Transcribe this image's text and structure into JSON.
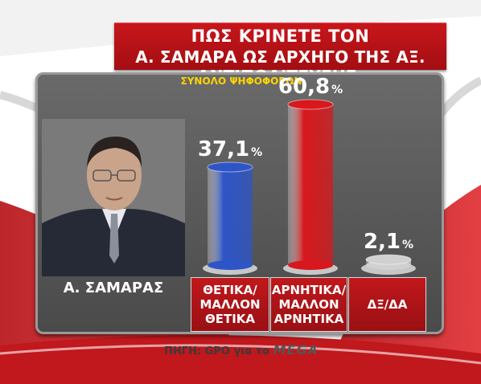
{
  "title": {
    "line1": "ΠΩΣ ΚΡΙΝΕΤΕ ΤΟΝ",
    "line2": "Α. ΣΑΜΑΡΑ ΩΣ ΑΡΧΗΓΟ ΤΗΣ ΑΞ. ΑΝΤΙΠΟΛΙΤΕΥΣΗΣ;"
  },
  "subtitle": "ΣΥΝΟΛΟ ΨΗΦΟΦΟΡΩΝ",
  "person_label": "Α. ΣΑΜΑΡΑΣ",
  "source": {
    "text": "ΠΗΓΗ: GPO για το",
    "brand": "MEGA"
  },
  "categories": [
    {
      "line1": "ΘΕΤΙΚΑ/",
      "line2": "ΜΑΛΛΟΝ",
      "line3": "ΘΕΤΙΚΑ"
    },
    {
      "line1": "ΑΡΝΗΤΙΚΑ/",
      "line2": "ΜΑΛΛΟΝ",
      "line3": "ΑΡΝΗΤΙΚΑ"
    },
    {
      "line1": "ΔΞ/ΔΑ",
      "line2": "",
      "line3": ""
    }
  ],
  "colors": {
    "brand_red": "#c0181c",
    "positive_bar": "#2e55c8",
    "negative_bar": "#d8181c",
    "neutral_bar": "#d0d0d0",
    "subtitle": "#ffd400"
  },
  "chart_data": {
    "type": "bar",
    "title": "ΠΩΣ ΚΡΙΝΕΤΕ ΤΟΝ Α. ΣΑΜΑΡΑ ΩΣ ΑΡΧΗΓΟ ΤΗΣ ΑΞ. ΑΝΤΙΠΟΛΙΤΕΥΣΗΣ;",
    "subtitle": "ΣΥΝΟΛΟ ΨΗΦΟΦΟΡΩΝ",
    "categories": [
      "ΘΕΤΙΚΑ/ΜΑΛΛΟΝ ΘΕΤΙΚΑ",
      "ΑΡΝΗΤΙΚΑ/ΜΑΛΛΟΝ ΑΡΝΗΤΙΚΑ",
      "ΔΞ/ΔΑ"
    ],
    "values": [
      37.1,
      60.8,
      2.1
    ],
    "value_labels": [
      "37,1",
      "60,8",
      "2,1"
    ],
    "unit": "%",
    "ylim": [
      0,
      100
    ],
    "grid": false,
    "legend": "none"
  }
}
